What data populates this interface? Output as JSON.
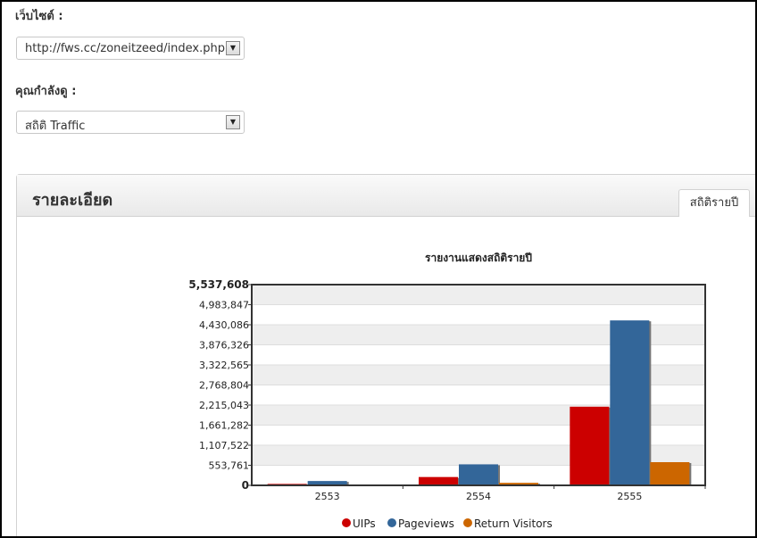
{
  "website": {
    "label": "เว็บไซต์ :",
    "selected": "http://fws.cc/zoneitzeed/index.php"
  },
  "viewing": {
    "label": "คุณกำลังดู :",
    "selected": "สถิติ Traffic"
  },
  "panel": {
    "title": "รายละเอียด",
    "tab_label": "สถิติรายปี"
  },
  "chart_data": {
    "type": "bar",
    "title": "รายงานแสดงสถิติรายปี",
    "categories": [
      "2553",
      "2554",
      "2555"
    ],
    "ylim": [
      0,
      5537608
    ],
    "yticks": [
      "0",
      "553,761",
      "1,107,522",
      "1,661,282",
      "2,215,043",
      "2,768,804",
      "3,322,565",
      "3,876,326",
      "4,430,086",
      "4,983,847",
      "5,537,608"
    ],
    "series": [
      {
        "name": "UIPs",
        "color": "#cc0000",
        "values": [
          40000,
          230000,
          2170000
        ]
      },
      {
        "name": "Pageviews",
        "color": "#336699",
        "values": [
          120000,
          580000,
          4550000
        ]
      },
      {
        "name": "Return Visitors",
        "color": "#cc6600",
        "values": [
          15000,
          70000,
          640000
        ]
      }
    ],
    "grid": true,
    "legend": "bottom"
  }
}
